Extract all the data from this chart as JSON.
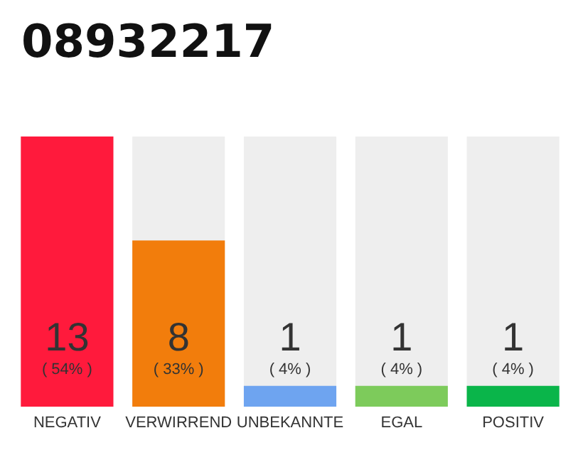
{
  "chart_data": {
    "type": "bar",
    "title": "08932217",
    "categories": [
      "NEGATIV",
      "VERWIRREND",
      "UNBEKANNTE",
      "EGAL",
      "POSITIV"
    ],
    "values": [
      13,
      8,
      1,
      1,
      1
    ],
    "colors": [
      "#ff1a3c",
      "#f27d0c",
      "#6ea4f0",
      "#7dcb5b",
      "#0ab54a"
    ],
    "data_labels": true,
    "annotations": [
      "( 54% )",
      "( 33% )",
      "( 4% )",
      "( 4% )",
      "( 4% )"
    ]
  }
}
